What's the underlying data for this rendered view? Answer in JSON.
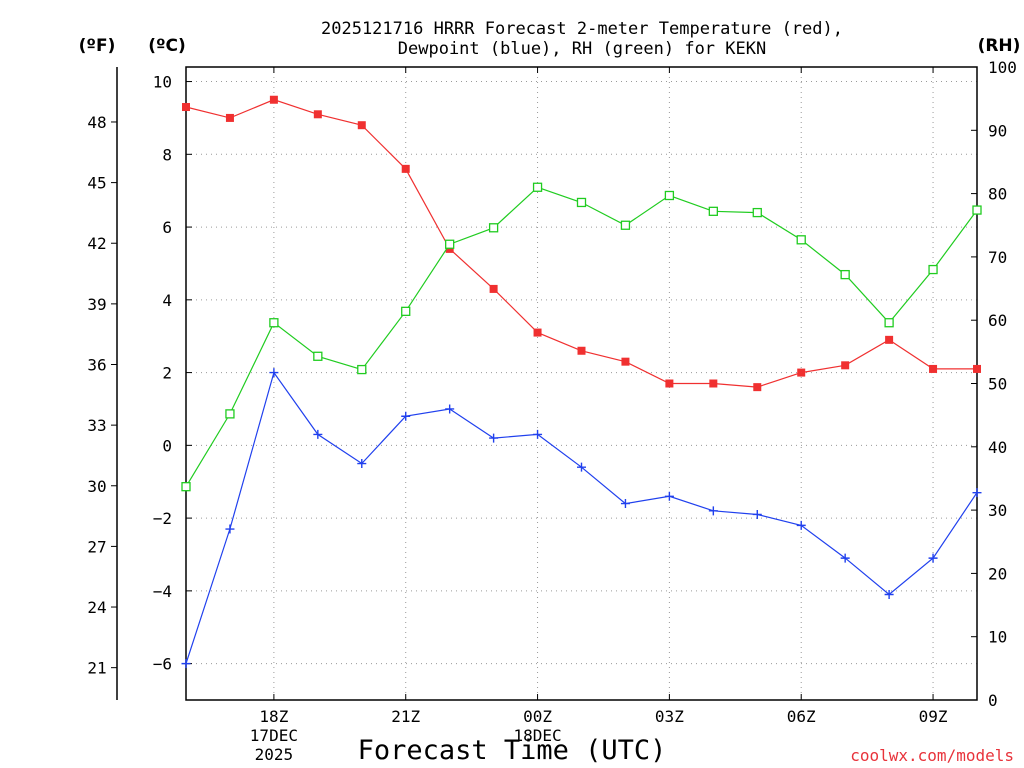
{
  "chart_data": {
    "type": "line",
    "title_line1": "2025121716 HRRR Forecast 2-meter Temperature (red),",
    "title_line2": "Dewpoint (blue), RH (green) for KEKN",
    "xlabel": "Forecast Time (UTC)",
    "credit": "coolwx.com/models",
    "units": {
      "fahrenheit": "(ºF)",
      "celsius": "(ºC)",
      "rh": "(RH)"
    },
    "x_hours": [
      16,
      17,
      18,
      19,
      20,
      21,
      22,
      23,
      24,
      25,
      26,
      27,
      28,
      29,
      30,
      31,
      32,
      33,
      34
    ],
    "xlim": [
      16,
      34
    ],
    "x_ticks": [
      {
        "hour": 18,
        "label": "18Z",
        "sub1": "17DEC",
        "sub2": "2025"
      },
      {
        "hour": 21,
        "label": "21Z",
        "sub1": "",
        "sub2": ""
      },
      {
        "hour": 24,
        "label": "00Z",
        "sub1": "18DEC",
        "sub2": ""
      },
      {
        "hour": 27,
        "label": "03Z",
        "sub1": "",
        "sub2": ""
      },
      {
        "hour": 30,
        "label": "06Z",
        "sub1": "",
        "sub2": ""
      },
      {
        "hour": 33,
        "label": "09Z",
        "sub1": "",
        "sub2": ""
      }
    ],
    "ylim_c": [
      -7,
      10.4
    ],
    "y_ticks_c": [
      "-6",
      "-4",
      "-2",
      "0",
      "2",
      "4",
      "6",
      "8",
      "10"
    ],
    "y_ticks_f": [
      "21",
      "24",
      "27",
      "30",
      "33",
      "36",
      "39",
      "42",
      "45",
      "48"
    ],
    "ylim_rh": [
      0,
      100
    ],
    "y_ticks_rh": [
      "0",
      "10",
      "20",
      "30",
      "40",
      "50",
      "60",
      "70",
      "80",
      "90",
      "100"
    ],
    "series": [
      {
        "name": "2-meter Temperature",
        "axis": "celsius",
        "color": "#f03030",
        "marker": "filled-square",
        "values": [
          9.3,
          9.0,
          9.5,
          9.1,
          8.8,
          7.6,
          5.4,
          4.3,
          3.1,
          2.6,
          2.3,
          1.7,
          1.7,
          1.6,
          2.0,
          2.2,
          2.9,
          2.1,
          2.1
        ]
      },
      {
        "name": "Dewpoint",
        "axis": "celsius",
        "color": "#2040ee",
        "marker": "plus",
        "values": [
          -6.0,
          -2.3,
          2.0,
          0.3,
          -0.5,
          0.8,
          1.0,
          0.2,
          0.3,
          -0.6,
          -1.6,
          -1.4,
          -1.8,
          -1.9,
          -2.2,
          -3.1,
          -4.1,
          -3.1,
          -1.3
        ]
      },
      {
        "name": "RH",
        "axis": "rh",
        "color": "#20cc20",
        "marker": "open-square",
        "values": [
          33.7,
          45.2,
          59.6,
          54.3,
          52.2,
          61.4,
          72.0,
          74.6,
          81.0,
          78.6,
          75.0,
          79.7,
          77.2,
          77.0,
          72.7,
          67.2,
          59.6,
          68.0,
          77.4
        ]
      }
    ]
  }
}
